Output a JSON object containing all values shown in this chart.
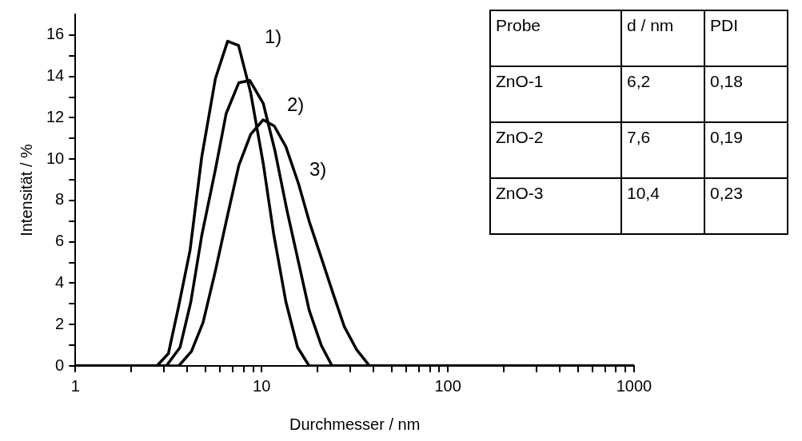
{
  "chart_data": {
    "type": "line",
    "xlabel": "Durchmesser / nm",
    "ylabel": "Intensität / %",
    "log": "x",
    "grid": false,
    "legend": false,
    "marker": "none",
    "line_style": "solid",
    "xlim": [
      1,
      1000
    ],
    "xticks": [
      1,
      {
        "value": 2,
        "label": null
      },
      {
        "value": 3,
        "label": null
      },
      {
        "value": 4,
        "label": null
      },
      {
        "value": 5,
        "label": null
      },
      {
        "value": 6,
        "label": null
      },
      {
        "value": 7,
        "label": null
      },
      {
        "value": 8,
        "label": null
      },
      {
        "value": 9,
        "label": null
      },
      10,
      {
        "value": 20,
        "label": null
      },
      {
        "value": 30,
        "label": null
      },
      {
        "value": 40,
        "label": null
      },
      {
        "value": 50,
        "label": null
      },
      {
        "value": 60,
        "label": null
      },
      {
        "value": 70,
        "label": null
      },
      {
        "value": 80,
        "label": null
      },
      {
        "value": 90,
        "label": null
      },
      100,
      {
        "value": 200,
        "label": null
      },
      {
        "value": 300,
        "label": null
      },
      {
        "value": 400,
        "label": null
      },
      {
        "value": 500,
        "label": null
      },
      {
        "value": 600,
        "label": null
      },
      {
        "value": 700,
        "label": null
      },
      {
        "value": 800,
        "label": null
      },
      {
        "value": 900,
        "label": null
      },
      1000
    ],
    "ylim": [
      0,
      17
    ],
    "yticks": [
      0,
      {
        "value": 1,
        "label": null
      },
      2,
      {
        "value": 3,
        "label": null
      },
      4,
      {
        "value": 5,
        "label": null
      },
      6,
      {
        "value": 7,
        "label": null
      },
      8,
      {
        "value": 9,
        "label": null
      },
      10,
      {
        "value": 11,
        "label": null
      },
      12,
      {
        "value": 13,
        "label": null
      },
      14,
      {
        "value": 15,
        "label": null
      },
      16
    ],
    "series": [
      {
        "color": "#000000",
        "x": [
          1,
          2.74,
          3.16,
          3.59,
          4.13,
          4.77,
          5.65,
          6.57,
          7.52,
          8.74,
          10.2,
          11.6,
          13.5,
          15.6,
          18.0,
          1000
        ],
        "values": [
          0,
          0,
          0.6,
          2.9,
          5.6,
          10.1,
          13.9,
          15.7,
          15.5,
          13.2,
          9.8,
          6.4,
          3.1,
          0.9,
          0,
          0
        ]
      },
      {
        "color": "#000000",
        "x": [
          1,
          3.08,
          3.65,
          4.17,
          4.77,
          5.65,
          6.45,
          7.55,
          8.65,
          10.2,
          11.8,
          13.7,
          15.8,
          18.0,
          20.9,
          23.9,
          1000
        ],
        "values": [
          0,
          0,
          0.9,
          3.1,
          6.3,
          9.5,
          12.2,
          13.7,
          13.8,
          12.7,
          10.4,
          7.5,
          5.0,
          2.7,
          1.0,
          0,
          0
        ]
      },
      {
        "color": "#000000",
        "x": [
          1,
          3.59,
          4.2,
          4.85,
          5.65,
          6.57,
          7.55,
          8.74,
          10.2,
          11.7,
          13.5,
          15.8,
          18.0,
          20.8,
          24.2,
          27.8,
          32.3,
          38.0,
          1000
        ],
        "values": [
          0,
          0,
          0.7,
          2.1,
          4.6,
          7.3,
          9.7,
          11.2,
          11.9,
          11.6,
          10.6,
          8.8,
          7.0,
          5.3,
          3.5,
          1.9,
          0.8,
          0,
          0
        ]
      }
    ],
    "annotations": [
      "1)",
      "2)",
      "3)",
      "Probe",
      "d / nm",
      "PDI",
      "ZnO-1",
      "6,2",
      "0,18",
      "ZnO-2",
      "7,6",
      "0,19",
      "ZnO-3",
      "10,4",
      "0,23"
    ]
  }
}
